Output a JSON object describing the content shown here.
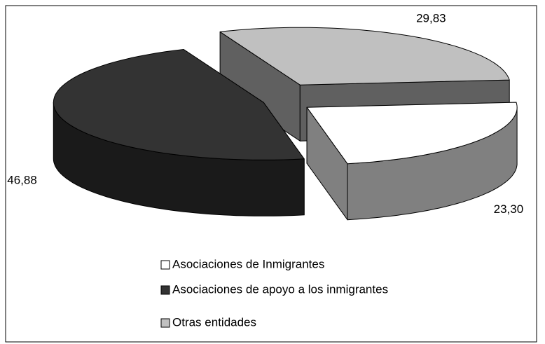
{
  "chart_data": {
    "type": "pie",
    "categories": [
      "Asociaciones de Inmigrantes",
      "Asociaciones de apoyo a los inmigrantes",
      "Otras entidades"
    ],
    "values": [
      23.3,
      46.88,
      29.83
    ],
    "value_labels": [
      "23,30",
      "46,88",
      "29,83"
    ],
    "colors": [
      "#ffffff",
      "#333333",
      "#c0c0c0"
    ],
    "legend": "bottom"
  }
}
